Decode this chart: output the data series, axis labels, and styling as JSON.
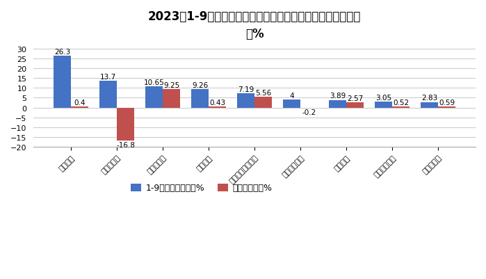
{
  "title": "2023年1-9月新能源重卡电机配套企业市场占比及占比同比增\n减%",
  "categories": [
    "苏州绿控",
    "特百佳动力",
    "徐工新能源",
    "宇通客车",
    "西安智德汽车电子",
    "中车时代电动",
    "凯博易控",
    "苏州朗瑞电机",
    "陕西法士特"
  ],
  "series1_values": [
    26.3,
    13.7,
    10.65,
    9.26,
    7.19,
    4.0,
    3.89,
    3.05,
    2.83
  ],
  "series2_values": [
    0.4,
    -16.8,
    9.25,
    0.43,
    5.56,
    -0.2,
    2.57,
    0.52,
    0.59
  ],
  "series1_label": "1-9月配套数量占比%",
  "series2_label": "占比同比增减%",
  "series1_color": "#4472C4",
  "series2_color": "#C0504D",
  "ylim": [
    -20,
    32
  ],
  "yticks": [
    -20,
    -15,
    -10,
    -5,
    0,
    5,
    10,
    15,
    20,
    25,
    30
  ],
  "background_color": "#FFFFFF",
  "grid_color": "#CCCCCC",
  "title_fontsize": 12,
  "label_fontsize": 7.5,
  "tick_fontsize": 8,
  "bar_width": 0.38
}
